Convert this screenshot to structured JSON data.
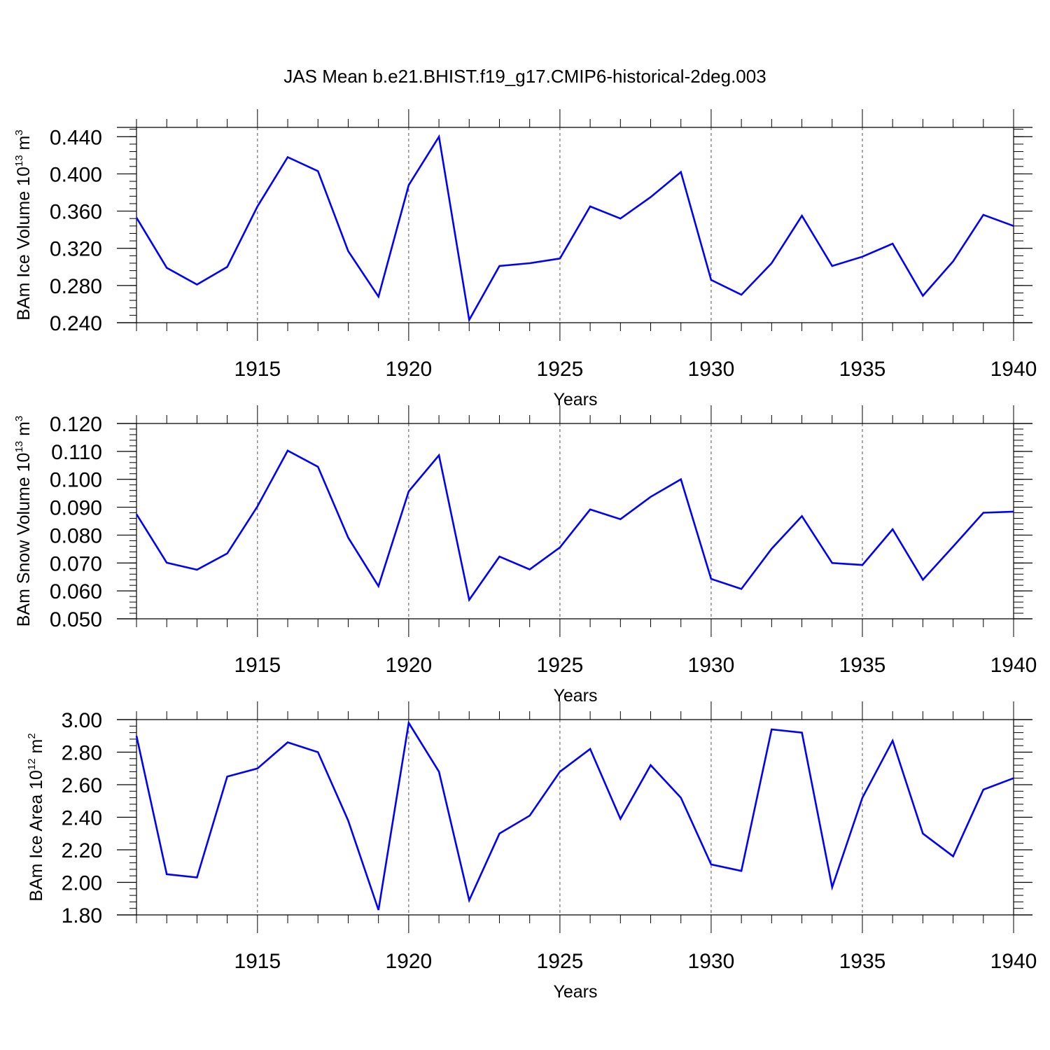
{
  "title": "JAS Mean b.e21.BHIST.f19_g17.CMIP6-historical-2deg.003",
  "colors": {
    "line": "#0000ff",
    "axis": "#000000",
    "grid": "#555555"
  },
  "chart_data": [
    {
      "type": "line",
      "ylabel": "BAm Ice Volume 10",
      "ylabel_exp": "13",
      "ylabel_unit": " m",
      "ylabel_unit_exp": "3",
      "xlabel": "Years",
      "xlim": [
        1911,
        1940
      ],
      "ylim": [
        0.24,
        0.45
      ],
      "yticks": [
        "0.240",
        "0.280",
        "0.320",
        "0.360",
        "0.400",
        "0.440"
      ],
      "xticks": [
        "1915",
        "1920",
        "1925",
        "1930",
        "1935",
        "1940"
      ],
      "grid": "vertical dashed at major x ticks",
      "series": [
        {
          "x": [
            1911,
            1912,
            1913,
            1914,
            1915,
            1916,
            1917,
            1918,
            1919,
            1920,
            1921,
            1922,
            1923,
            1924,
            1925,
            1926,
            1927,
            1928,
            1929,
            1930,
            1931,
            1932,
            1933,
            1934,
            1935,
            1936,
            1937,
            1938,
            1939,
            1940
          ],
          "values": [
            0.353,
            0.299,
            0.281,
            0.3,
            0.365,
            0.418,
            0.403,
            0.317,
            0.268,
            0.388,
            0.44,
            0.243,
            0.301,
            0.304,
            0.309,
            0.365,
            0.352,
            0.375,
            0.402,
            0.286,
            0.27,
            0.304,
            0.355,
            0.301,
            0.311,
            0.325,
            0.269,
            0.306,
            0.356,
            0.344
          ]
        }
      ]
    },
    {
      "type": "line",
      "ylabel": "BAm Snow Volume 10",
      "ylabel_exp": "13",
      "ylabel_unit": " m",
      "ylabel_unit_exp": "3",
      "xlabel": "Years",
      "xlim": [
        1911,
        1940
      ],
      "ylim": [
        0.05,
        0.12
      ],
      "yticks": [
        "0.050",
        "0.060",
        "0.070",
        "0.080",
        "0.090",
        "0.100",
        "0.110",
        "0.120"
      ],
      "xticks": [
        "1915",
        "1920",
        "1925",
        "1930",
        "1935",
        "1940"
      ],
      "grid": "vertical dashed at major x ticks",
      "series": [
        {
          "x": [
            1911,
            1912,
            1913,
            1914,
            1915,
            1916,
            1917,
            1918,
            1919,
            1920,
            1921,
            1922,
            1923,
            1924,
            1925,
            1926,
            1927,
            1928,
            1929,
            1930,
            1931,
            1932,
            1933,
            1934,
            1935,
            1936,
            1937,
            1938,
            1939,
            1940
          ],
          "values": [
            0.0875,
            0.0701,
            0.0676,
            0.0734,
            0.0903,
            0.1103,
            0.1045,
            0.0791,
            0.0617,
            0.0957,
            0.1086,
            0.0568,
            0.0723,
            0.0677,
            0.0756,
            0.0892,
            0.0857,
            0.0937,
            0.1,
            0.0643,
            0.0607,
            0.0751,
            0.0868,
            0.07,
            0.0693,
            0.0821,
            0.064,
            0.0759,
            0.088,
            0.0884
          ]
        }
      ]
    },
    {
      "type": "line",
      "ylabel": "BAm Ice Area 10",
      "ylabel_exp": "12",
      "ylabel_unit": " m",
      "ylabel_unit_exp": "2",
      "xlabel": "Years",
      "xlim": [
        1911,
        1940
      ],
      "ylim": [
        1.8,
        3.0
      ],
      "yticks": [
        "1.80",
        "2.00",
        "2.20",
        "2.40",
        "2.60",
        "2.80",
        "3.00"
      ],
      "xticks": [
        "1915",
        "1920",
        "1925",
        "1930",
        "1935",
        "1940"
      ],
      "grid": "vertical dashed at major x ticks",
      "series": [
        {
          "x": [
            1911,
            1912,
            1913,
            1914,
            1915,
            1916,
            1917,
            1918,
            1919,
            1920,
            1921,
            1922,
            1923,
            1924,
            1925,
            1926,
            1927,
            1928,
            1929,
            1930,
            1931,
            1932,
            1933,
            1934,
            1935,
            1936,
            1937,
            1938,
            1939,
            1940
          ],
          "values": [
            2.9,
            2.05,
            2.03,
            2.65,
            2.7,
            2.86,
            2.8,
            2.38,
            1.83,
            2.98,
            2.68,
            1.89,
            2.3,
            2.41,
            2.68,
            2.82,
            2.39,
            2.72,
            2.52,
            2.11,
            2.07,
            2.94,
            2.92,
            1.97,
            2.52,
            2.87,
            2.3,
            2.16,
            2.57,
            2.64
          ]
        }
      ]
    }
  ]
}
